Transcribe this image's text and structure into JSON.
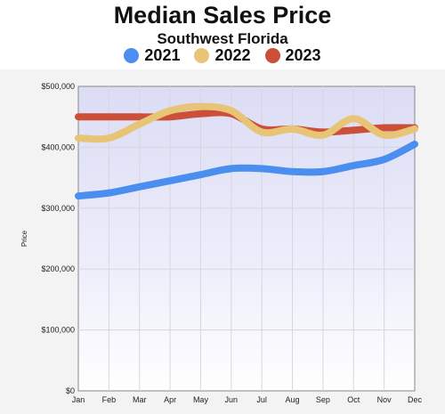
{
  "chart_data": {
    "type": "line",
    "title": "Median Sales Price",
    "subtitle": "Southwest Florida",
    "ylabel": "Price",
    "xlabel": "",
    "categories": [
      "Jan",
      "Feb",
      "Mar",
      "Apr",
      "May",
      "Jun",
      "Jul",
      "Aug",
      "Sep",
      "Oct",
      "Nov",
      "Dec"
    ],
    "ylim": [
      0,
      500000
    ],
    "yticks": [
      0,
      100000,
      200000,
      300000,
      400000,
      500000
    ],
    "ytick_labels": [
      "$0",
      "$100,000",
      "$200,000",
      "$300,000",
      "$400,000",
      "$500,000"
    ],
    "grid": true,
    "legend_position": "top",
    "series": [
      {
        "name": "2021",
        "color": "#4a8ef0",
        "values": [
          320000,
          325000,
          335000,
          345000,
          355000,
          365000,
          365000,
          360000,
          360000,
          370000,
          380000,
          405000
        ]
      },
      {
        "name": "2022",
        "color": "#e8c476",
        "values": [
          415000,
          415000,
          438000,
          460000,
          467000,
          460000,
          425000,
          430000,
          420000,
          447000,
          420000,
          430000
        ]
      },
      {
        "name": "2023",
        "color": "#cc4f3a",
        "values": [
          450000,
          450000,
          450000,
          450000,
          455000,
          455000,
          430000,
          430000,
          425000,
          428000,
          432000,
          432000
        ]
      }
    ]
  }
}
